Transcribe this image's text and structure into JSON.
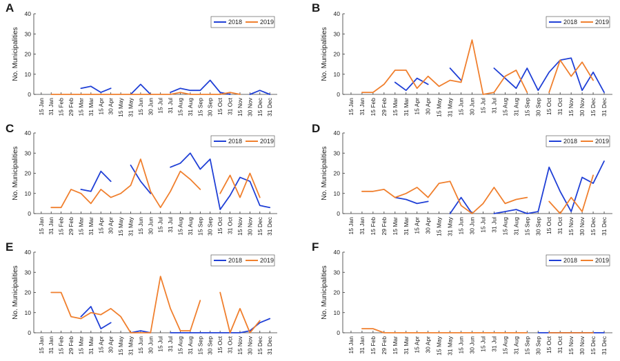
{
  "figure": {
    "legend_position": "top-right",
    "colors": {
      "2018": "#1f3fd6",
      "2019": "#f07f2d"
    }
  },
  "chart_data": [
    {
      "panel": "A",
      "type": "line",
      "ylabel": "No. Municipalities",
      "ylim": [
        0,
        40
      ],
      "yticks": [
        0,
        10,
        20,
        30,
        40
      ],
      "categories": [
        "15 Jan",
        "31 Jan",
        "15 Feb",
        "29 Feb",
        "15 Mar",
        "31 Mar",
        "15 Apr",
        "30 Apr",
        "15 May",
        "31 May",
        "15 Jun",
        "30 Jun",
        "15 Jul",
        "31 Jul",
        "15 Aug",
        "31 Aug",
        "15 Sep",
        "30 Sep",
        "15 Oct",
        "31 Oct",
        "15 Nov",
        "30 Nov",
        "15 Dec",
        "31 Dec"
      ],
      "series": [
        {
          "name": "2018",
          "values": [
            null,
            null,
            null,
            null,
            3,
            4,
            1,
            3,
            null,
            0,
            5,
            0,
            null,
            1,
            3,
            2,
            2,
            7,
            1,
            0,
            null,
            0,
            2,
            0
          ]
        },
        {
          "name": "2019",
          "values": [
            null,
            0,
            0,
            0,
            0,
            0,
            0,
            0,
            0,
            0,
            0,
            0,
            0,
            0,
            1,
            0,
            0,
            0,
            0,
            1,
            0,
            null,
            null,
            null
          ]
        }
      ]
    },
    {
      "panel": "B",
      "type": "line",
      "ylabel": "No. Municipalities",
      "ylim": [
        0,
        40
      ],
      "yticks": [
        0,
        10,
        20,
        30,
        40
      ],
      "categories": [
        "15 Jan",
        "31 Jan",
        "15 Feb",
        "29 Feb",
        "15 Mar",
        "31 Mar",
        "15 Apr",
        "30 Apr",
        "15 May",
        "31 May",
        "15 Jun",
        "30 Jun",
        "15 Jul",
        "31 Jul",
        "15 Aug",
        "31 Aug",
        "15 Sep",
        "30 Sep",
        "15 Oct",
        "31 Oct",
        "15 Nov",
        "30 Nov",
        "15 Dec",
        "31 Dec"
      ],
      "series": [
        {
          "name": "2018",
          "values": [
            null,
            null,
            null,
            null,
            6,
            2,
            8,
            5,
            null,
            13,
            7,
            null,
            null,
            13,
            8,
            3,
            13,
            2,
            11,
            17,
            18,
            2,
            11,
            1
          ]
        },
        {
          "name": "2019",
          "values": [
            null,
            1,
            1,
            5,
            12,
            12,
            3,
            9,
            4,
            7,
            6,
            27,
            0,
            1,
            9,
            12,
            1,
            null,
            1,
            17,
            9,
            16,
            7,
            null
          ]
        }
      ]
    },
    {
      "panel": "C",
      "type": "line",
      "ylabel": "No. Municipalities",
      "ylim": [
        0,
        40
      ],
      "yticks": [
        0,
        10,
        20,
        30,
        40
      ],
      "categories": [
        "15 Jan",
        "31 Jan",
        "15 Feb",
        "29 Feb",
        "15 Mar",
        "31 Mar",
        "15 Apr",
        "30 Apr",
        "15 May",
        "31 May",
        "15 Jun",
        "30 Jun",
        "15 Jul",
        "31 Jul",
        "15 Aug",
        "31 Aug",
        "15 Sep",
        "30 Sep",
        "15 Oct",
        "31 Oct",
        "15 Nov",
        "30 Nov",
        "15 Dec",
        "31 Dec"
      ],
      "series": [
        {
          "name": "2018",
          "values": [
            null,
            null,
            null,
            null,
            12,
            11,
            21,
            16,
            null,
            24,
            16,
            10,
            null,
            23,
            25,
            30,
            22,
            27,
            2,
            9,
            18,
            16,
            4,
            3
          ]
        },
        {
          "name": "2019",
          "values": [
            null,
            3,
            3,
            12,
            10,
            5,
            12,
            8,
            10,
            14,
            27,
            11,
            3,
            11,
            21,
            17,
            12,
            null,
            10,
            19,
            8,
            20,
            8,
            null
          ]
        }
      ]
    },
    {
      "panel": "D",
      "type": "line",
      "ylabel": "No. Municipalities",
      "ylim": [
        0,
        40
      ],
      "yticks": [
        0,
        10,
        20,
        30,
        40
      ],
      "categories": [
        "15 Jan",
        "31 Jan",
        "15 Feb",
        "29 Feb",
        "15 Mar",
        "31 Mar",
        "15 Apr",
        "30 Apr",
        "15 May",
        "31 May",
        "15 Jun",
        "30 Jun",
        "15 Jul",
        "31 Jul",
        "15 Aug",
        "31 Aug",
        "15 Sep",
        "30 Sep",
        "15 Oct",
        "31 Oct",
        "15 Nov",
        "30 Nov",
        "15 Dec",
        "31 Dec"
      ],
      "series": [
        {
          "name": "2018",
          "values": [
            null,
            null,
            null,
            null,
            8,
            7,
            5,
            6,
            null,
            0,
            8,
            0,
            null,
            0,
            1,
            2,
            0,
            1,
            23,
            11,
            1,
            18,
            15,
            26
          ]
        },
        {
          "name": "2019",
          "values": [
            null,
            11,
            11,
            12,
            8,
            10,
            13,
            8,
            15,
            16,
            4,
            0,
            5,
            13,
            5,
            7,
            8,
            null,
            6,
            0,
            8,
            1,
            19,
            null
          ]
        }
      ]
    },
    {
      "panel": "E",
      "type": "line",
      "ylabel": "No. Municipalities",
      "ylim": [
        0,
        40
      ],
      "yticks": [
        0,
        10,
        20,
        30,
        40
      ],
      "categories": [
        "15 Jan",
        "31 Jan",
        "15 Feb",
        "29 Feb",
        "15 Mar",
        "31 Mar",
        "15 Apr",
        "30 Apr",
        "15 May",
        "31 May",
        "15 Jun",
        "30 Jun",
        "15 Jul",
        "31 Jul",
        "15 Aug",
        "31 Aug",
        "15 Sep",
        "30 Sep",
        "15 Oct",
        "31 Oct",
        "15 Nov",
        "30 Nov",
        "15 Dec",
        "31 Dec"
      ],
      "series": [
        {
          "name": "2018",
          "values": [
            null,
            null,
            null,
            null,
            8,
            13,
            2,
            5,
            null,
            0,
            1,
            0,
            null,
            0,
            0,
            0,
            0,
            0,
            0,
            0,
            0,
            1,
            5,
            7
          ]
        },
        {
          "name": "2019",
          "values": [
            null,
            20,
            20,
            8,
            7,
            10,
            9,
            12,
            8,
            0,
            0,
            0,
            28,
            12,
            1,
            1,
            16,
            null,
            20,
            0,
            12,
            0,
            6,
            null
          ]
        }
      ]
    },
    {
      "panel": "F",
      "type": "line",
      "ylabel": "No. Municipalities",
      "ylim": [
        0,
        40
      ],
      "yticks": [
        0,
        10,
        20,
        30,
        40
      ],
      "categories": [
        "15 Jan",
        "31 Jan",
        "15 Feb",
        "29 Feb",
        "15 Mar",
        "31 Mar",
        "15 Apr",
        "30 Apr",
        "15 May",
        "31 May",
        "15 Jun",
        "30 Jun",
        "15 Jul",
        "31 Jul",
        "15 Aug",
        "31 Aug",
        "15 Sep",
        "30 Sep",
        "15 Oct",
        "31 Oct",
        "15 Nov",
        "30 Nov",
        "15 Dec",
        "31 Dec"
      ],
      "series": [
        {
          "name": "2018",
          "values": [
            null,
            null,
            null,
            null,
            null,
            null,
            null,
            null,
            null,
            null,
            null,
            null,
            null,
            null,
            null,
            null,
            null,
            0,
            0,
            0,
            0,
            0,
            0,
            0
          ]
        },
        {
          "name": "2019",
          "values": [
            null,
            2,
            2,
            0,
            0,
            0,
            0,
            0,
            0,
            0,
            0,
            0,
            0,
            0,
            0,
            0,
            0,
            null,
            0,
            0,
            0,
            0,
            0,
            null
          ]
        }
      ]
    }
  ]
}
